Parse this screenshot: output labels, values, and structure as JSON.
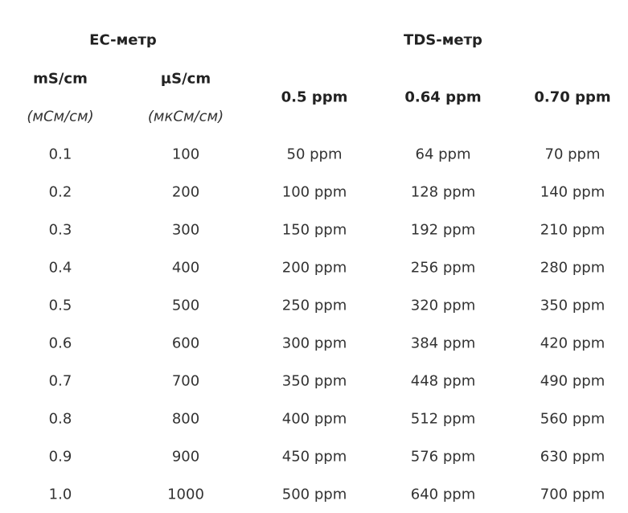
{
  "table": {
    "group_headers": [
      "EC-метр",
      "TDS-метр"
    ],
    "columns": [
      "mS/cm",
      "µS/cm",
      "0.5 ppm",
      "0.64 ppm",
      "0.70 ppm"
    ],
    "units": [
      "(мСм/см)",
      "(мкСм/см)"
    ],
    "rows": [
      [
        "0.1",
        "100",
        "50 ppm",
        "64 ppm",
        "70 ppm"
      ],
      [
        "0.2",
        "200",
        "100 ppm",
        "128 ppm",
        "140 ppm"
      ],
      [
        "0.3",
        "300",
        "150 ppm",
        "192 ppm",
        "210 ppm"
      ],
      [
        "0.4",
        "400",
        "200 ppm",
        "256 ppm",
        "280 ppm"
      ],
      [
        "0.5",
        "500",
        "250 ppm",
        "320 ppm",
        "350 ppm"
      ],
      [
        "0.6",
        "600",
        "300 ppm",
        "384 ppm",
        "420 ppm"
      ],
      [
        "0.7",
        "700",
        "350 ppm",
        "448 ppm",
        "490 ppm"
      ],
      [
        "0.8",
        "800",
        "400 ppm",
        "512 ppm",
        "560 ppm"
      ],
      [
        "0.9",
        "900",
        "450 ppm",
        "576 ppm",
        "630 ppm"
      ],
      [
        "1.0",
        "1000",
        "500 ppm",
        "640 ppm",
        "700 ppm"
      ]
    ]
  }
}
